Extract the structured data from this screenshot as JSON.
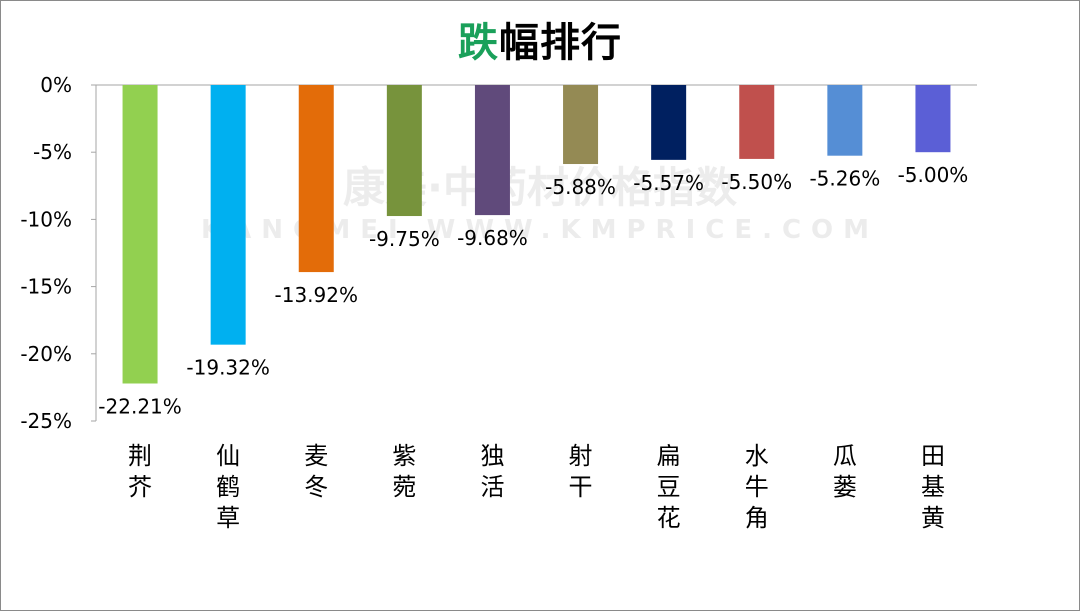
{
  "title": {
    "accent": "跌",
    "rest": "幅排行"
  },
  "colors": {
    "accent": "#1aa05a"
  },
  "watermark": {
    "line1": "康美·中药材价格指数",
    "line2": "KANGMEI WWW.KMPRICE.COM"
  },
  "chart_data": {
    "type": "bar",
    "title": "跌幅排行",
    "categories": [
      "荆芥",
      "仙鹤草",
      "麦冬",
      "紫菀",
      "独活",
      "射干",
      "扁豆花",
      "水牛角",
      "瓜蒌",
      "田基黄"
    ],
    "values": [
      -22.21,
      -19.32,
      -13.92,
      -9.75,
      -9.68,
      -5.88,
      -5.57,
      -5.5,
      -5.26,
      -5.0
    ],
    "data_labels": [
      "-22.21%",
      "-19.32%",
      "-13.92%",
      "-9.75%",
      "-9.68%",
      "-5.88%",
      "-5.57%",
      "-5.50%",
      "-5.26%",
      "-5.00%"
    ],
    "bar_colors": [
      "#92d050",
      "#00b0f0",
      "#e36c09",
      "#77933c",
      "#604a7b",
      "#948a54",
      "#002060",
      "#c0504d",
      "#558ed5",
      "#5b5fd6"
    ],
    "ylim": [
      -25,
      0
    ],
    "yticks": [
      0,
      -5,
      -10,
      -15,
      -20,
      -25
    ],
    "ytick_labels": [
      "0%",
      "-5%",
      "-10%",
      "-15%",
      "-20%",
      "-25%"
    ],
    "grid": false,
    "legend": "none"
  }
}
